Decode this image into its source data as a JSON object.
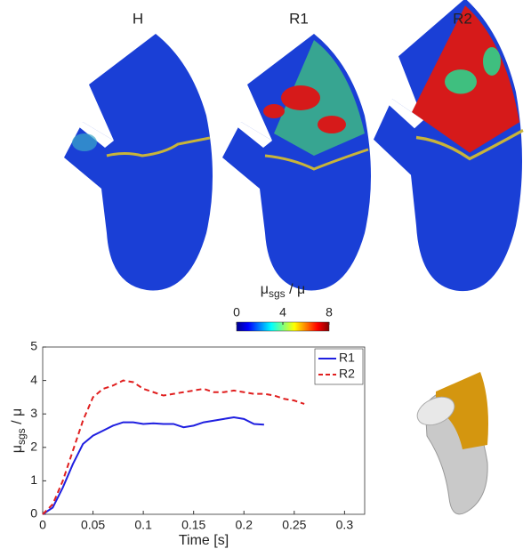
{
  "panels": [
    "H",
    "R1",
    "R2"
  ],
  "colorbar": {
    "label": [
      "μ",
      "sgs",
      " / μ"
    ],
    "lim": [
      0,
      8
    ],
    "ticks": [
      0,
      4,
      8
    ]
  },
  "chart_data": {
    "type": "line",
    "xlabel": "Time [s]",
    "ylabel": [
      "μ",
      "sgs",
      " / μ"
    ],
    "x": [
      0,
      0.01,
      0.02,
      0.03,
      0.04,
      0.05,
      0.06,
      0.07,
      0.08,
      0.09,
      0.1,
      0.11,
      0.12,
      0.13,
      0.14,
      0.15,
      0.16,
      0.17,
      0.18,
      0.19,
      0.2,
      0.21,
      0.22,
      0.23,
      0.24,
      0.25,
      0.26
    ],
    "series": [
      {
        "name": "R1",
        "color": "#1f1fe0",
        "dash": false,
        "values": [
          0,
          0.2,
          0.8,
          1.5,
          2.1,
          2.35,
          2.5,
          2.65,
          2.75,
          2.75,
          2.7,
          2.72,
          2.7,
          2.7,
          2.6,
          2.65,
          2.75,
          2.8,
          2.85,
          2.9,
          2.85,
          2.7,
          2.68,
          null,
          null,
          null,
          null
        ]
      },
      {
        "name": "R2",
        "color": "#e01f1f",
        "dash": true,
        "values": [
          0,
          0.3,
          1.0,
          1.9,
          2.8,
          3.5,
          3.75,
          3.85,
          4.0,
          3.95,
          3.75,
          3.65,
          3.55,
          3.6,
          3.65,
          3.7,
          3.75,
          3.65,
          3.65,
          3.7,
          3.65,
          3.6,
          3.6,
          3.55,
          3.45,
          3.4,
          3.3
        ]
      }
    ],
    "xlim": [
      0,
      0.32
    ],
    "ylim": [
      0,
      5
    ],
    "xticks": [
      0,
      0.05,
      0.1,
      0.15,
      0.2,
      0.25,
      0.3
    ],
    "yticks": [
      0,
      1,
      2,
      3,
      4,
      5
    ],
    "legend": "top-right"
  }
}
